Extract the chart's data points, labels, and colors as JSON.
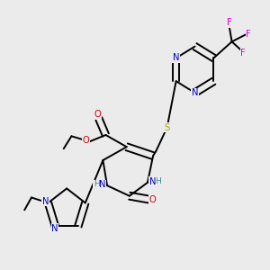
{
  "bg_color": "#ebebeb",
  "atom_colors": {
    "C": "#000000",
    "N": "#0000cc",
    "O": "#cc0000",
    "S": "#aaaa00",
    "F": "#dd00dd",
    "H": "#448888"
  },
  "lw": 1.4,
  "fs": 7.2
}
